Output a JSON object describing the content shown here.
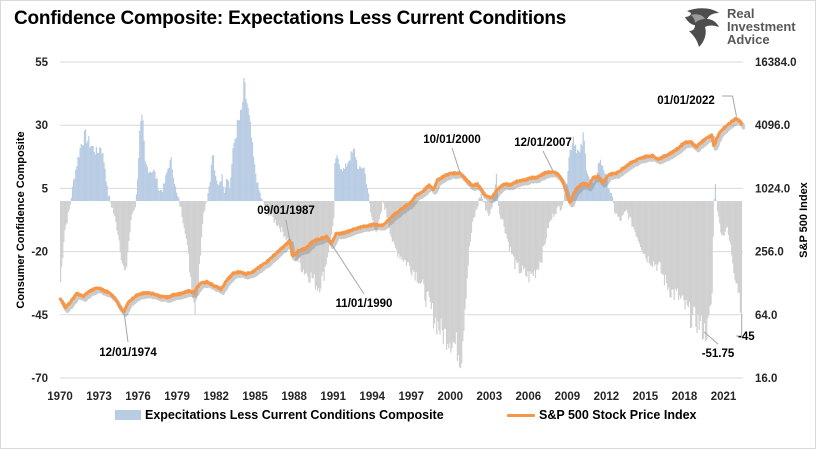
{
  "title": "Confidence Composite: Expectations Less Current Conditions",
  "logo": {
    "icon": "eagle-head-icon",
    "lines": [
      "Real",
      "Investment",
      "Advice"
    ]
  },
  "chart_data": {
    "type": "bar+line",
    "title": "Confidence Composite: Expectations Less Current Conditions",
    "xlabel": "",
    "ylabel": "Consumer Confidence Composite",
    "y2label": "S&P 500 Index",
    "x_range": [
      1970,
      2022.5
    ],
    "x_ticks": [
      "1970",
      "1973",
      "1976",
      "1979",
      "1982",
      "1985",
      "1988",
      "1991",
      "1994",
      "1997",
      "2000",
      "2003",
      "2006",
      "2009",
      "2012",
      "2015",
      "2018",
      "2021"
    ],
    "ylim": [
      -70,
      55
    ],
    "y_ticks": [
      "55",
      "30",
      "5",
      "-20",
      "-45",
      "-70"
    ],
    "y2_scale": "log2",
    "y2lim": [
      16,
      16384
    ],
    "y2_ticks": [
      "16384.0",
      "4096.0",
      "1024.0",
      "256.0",
      "64.0",
      "16.0"
    ],
    "grid": true,
    "legend_position": "bottom",
    "colors": {
      "positive_bar": "#b8cce4",
      "negative_bar": "#d0d0d0",
      "line": "#f79646",
      "highlight_label": "#ff0000"
    },
    "series": [
      {
        "name": "Expecitations Less Current Conditions Composite",
        "type": "bar",
        "note": "monthly values, anchor points [year, value]",
        "points": [
          [
            1970.0,
            -32
          ],
          [
            1970.3,
            -12
          ],
          [
            1970.7,
            -3
          ],
          [
            1971.0,
            8
          ],
          [
            1971.3,
            16
          ],
          [
            1971.6,
            23
          ],
          [
            1971.9,
            26
          ],
          [
            1972.2,
            23
          ],
          [
            1972.5,
            21
          ],
          [
            1972.8,
            19
          ],
          [
            1973.1,
            22
          ],
          [
            1973.4,
            14
          ],
          [
            1973.6,
            4
          ],
          [
            1973.8,
            0
          ],
          [
            1974.0,
            -3
          ],
          [
            1974.4,
            -12
          ],
          [
            1974.8,
            -26
          ],
          [
            1975.0,
            -30
          ],
          [
            1975.2,
            -18
          ],
          [
            1975.5,
            -5
          ],
          [
            1975.8,
            -1
          ],
          [
            1975.9,
            8
          ],
          [
            1976.1,
            28
          ],
          [
            1976.3,
            32
          ],
          [
            1976.5,
            15
          ],
          [
            1976.8,
            12
          ],
          [
            1977.2,
            12
          ],
          [
            1977.6,
            4
          ],
          [
            1977.9,
            5
          ],
          [
            1978.3,
            14
          ],
          [
            1978.5,
            16
          ],
          [
            1978.9,
            3
          ],
          [
            1979.1,
            0
          ],
          [
            1979.2,
            -2
          ],
          [
            1979.6,
            -12
          ],
          [
            1980.0,
            -30
          ],
          [
            1980.3,
            -42
          ],
          [
            1980.6,
            -32
          ],
          [
            1980.9,
            -8
          ],
          [
            1981.1,
            -2
          ],
          [
            1981.3,
            2
          ],
          [
            1981.5,
            9
          ],
          [
            1981.7,
            20
          ],
          [
            1981.9,
            9
          ],
          [
            1982.1,
            6
          ],
          [
            1982.4,
            10
          ],
          [
            1982.6,
            4
          ],
          [
            1982.8,
            11
          ],
          [
            1983.0,
            5
          ],
          [
            1983.3,
            22
          ],
          [
            1983.6,
            30
          ],
          [
            1983.9,
            34
          ],
          [
            1984.1,
            45
          ],
          [
            1984.3,
            40
          ],
          [
            1984.6,
            28
          ],
          [
            1984.9,
            14
          ],
          [
            1985.2,
            5
          ],
          [
            1985.5,
            0
          ],
          [
            1985.7,
            -2
          ],
          [
            1986.2,
            -6
          ],
          [
            1986.8,
            -10
          ],
          [
            1987.3,
            -14
          ],
          [
            1987.8,
            -20
          ],
          [
            1988.3,
            -24
          ],
          [
            1988.8,
            -28
          ],
          [
            1989.3,
            -30
          ],
          [
            1989.8,
            -34
          ],
          [
            1990.2,
            -30
          ],
          [
            1990.7,
            -16
          ],
          [
            1991.0,
            -8
          ],
          [
            1991.1,
            18
          ],
          [
            1991.5,
            14
          ],
          [
            1991.8,
            12
          ],
          [
            1992.2,
            17
          ],
          [
            1992.6,
            20
          ],
          [
            1992.9,
            12
          ],
          [
            1993.3,
            14
          ],
          [
            1993.6,
            5
          ],
          [
            1993.8,
            -4
          ],
          [
            1994.0,
            -8
          ],
          [
            1994.3,
            -12
          ],
          [
            1994.6,
            -6
          ],
          [
            1994.8,
            0
          ],
          [
            1995.0,
            -4
          ],
          [
            1995.6,
            -18
          ],
          [
            1996.2,
            -22
          ],
          [
            1996.9,
            -26
          ],
          [
            1997.5,
            -30
          ],
          [
            1998.1,
            -38
          ],
          [
            1998.7,
            -46
          ],
          [
            1999.3,
            -52
          ],
          [
            1999.9,
            -54
          ],
          [
            2000.5,
            -58
          ],
          [
            2000.8,
            -62
          ],
          [
            2001.1,
            -40
          ],
          [
            2001.4,
            -20
          ],
          [
            2001.7,
            -8
          ],
          [
            2002.0,
            -3
          ],
          [
            2002.3,
            3
          ],
          [
            2002.6,
            -2
          ],
          [
            2003.0,
            -6
          ],
          [
            2003.3,
            2
          ],
          [
            2003.5,
            10
          ],
          [
            2003.7,
            -4
          ],
          [
            2004.0,
            -8
          ],
          [
            2004.5,
            -18
          ],
          [
            2005.0,
            -26
          ],
          [
            2005.5,
            -28
          ],
          [
            2006.0,
            -30
          ],
          [
            2006.5,
            -28
          ],
          [
            2007.0,
            -22
          ],
          [
            2007.5,
            -10
          ],
          [
            2008.0,
            -4
          ],
          [
            2008.5,
            -2
          ],
          [
            2008.8,
            2
          ],
          [
            2009.1,
            18
          ],
          [
            2009.4,
            26
          ],
          [
            2009.6,
            22
          ],
          [
            2009.9,
            18
          ],
          [
            2010.2,
            26
          ],
          [
            2010.4,
            14
          ],
          [
            2010.7,
            8
          ],
          [
            2011.0,
            6
          ],
          [
            2011.4,
            16
          ],
          [
            2011.7,
            14
          ],
          [
            2012.0,
            8
          ],
          [
            2012.3,
            3
          ],
          [
            2012.6,
            -4
          ],
          [
            2013.0,
            -8
          ],
          [
            2013.5,
            -4
          ],
          [
            2014.0,
            -10
          ],
          [
            2014.5,
            -16
          ],
          [
            2015.0,
            -22
          ],
          [
            2015.5,
            -24
          ],
          [
            2016.0,
            -26
          ],
          [
            2016.5,
            -32
          ],
          [
            2017.0,
            -36
          ],
          [
            2017.5,
            -38
          ],
          [
            2018.0,
            -42
          ],
          [
            2018.5,
            -46
          ],
          [
            2019.0,
            -48
          ],
          [
            2019.5,
            -51.75
          ],
          [
            2019.8,
            -50
          ],
          [
            2020.1,
            -36
          ],
          [
            2020.2,
            -4
          ],
          [
            2020.3,
            8
          ],
          [
            2020.4,
            2
          ],
          [
            2020.6,
            -8
          ],
          [
            2020.9,
            -14
          ],
          [
            2021.2,
            -10
          ],
          [
            2021.5,
            -18
          ],
          [
            2021.8,
            -28
          ],
          [
            2022.0,
            -32
          ],
          [
            2022.2,
            -38
          ],
          [
            2022.4,
            -45
          ]
        ]
      },
      {
        "name": "S&P 500 Stock Price Index",
        "type": "line",
        "axis": "right",
        "note": "anchor points [year, index level]",
        "points": [
          [
            1970.0,
            92
          ],
          [
            1970.4,
            75
          ],
          [
            1970.8,
            84
          ],
          [
            1971.3,
            102
          ],
          [
            1971.8,
            96
          ],
          [
            1972.3,
            108
          ],
          [
            1972.9,
            116
          ],
          [
            1973.3,
            110
          ],
          [
            1973.8,
            104
          ],
          [
            1974.3,
            90
          ],
          [
            1974.6,
            76
          ],
          [
            1974.92,
            68
          ],
          [
            1975.2,
            82
          ],
          [
            1975.6,
            92
          ],
          [
            1976.0,
            100
          ],
          [
            1976.6,
            104
          ],
          [
            1977.2,
            101
          ],
          [
            1977.8,
            95
          ],
          [
            1978.3,
            94
          ],
          [
            1978.8,
            100
          ],
          [
            1979.4,
            102
          ],
          [
            1979.9,
            108
          ],
          [
            1980.3,
            104
          ],
          [
            1980.8,
            128
          ],
          [
            1981.3,
            132
          ],
          [
            1981.8,
            122
          ],
          [
            1982.4,
            112
          ],
          [
            1982.8,
            135
          ],
          [
            1983.3,
            158
          ],
          [
            1983.8,
            164
          ],
          [
            1984.3,
            157
          ],
          [
            1984.9,
            166
          ],
          [
            1985.5,
            188
          ],
          [
            1986.0,
            210
          ],
          [
            1986.6,
            245
          ],
          [
            1987.2,
            285
          ],
          [
            1987.67,
            325
          ],
          [
            1987.85,
            232
          ],
          [
            1988.3,
            258
          ],
          [
            1988.9,
            275
          ],
          [
            1989.5,
            325
          ],
          [
            1990.0,
            340
          ],
          [
            1990.5,
            358
          ],
          [
            1990.84,
            305
          ],
          [
            1991.2,
            375
          ],
          [
            1991.8,
            385
          ],
          [
            1992.4,
            410
          ],
          [
            1993.0,
            435
          ],
          [
            1993.6,
            450
          ],
          [
            1994.2,
            465
          ],
          [
            1994.8,
            455
          ],
          [
            1995.3,
            520
          ],
          [
            1995.8,
            590
          ],
          [
            1996.3,
            660
          ],
          [
            1996.9,
            740
          ],
          [
            1997.4,
            880
          ],
          [
            1997.9,
            960
          ],
          [
            1998.4,
            1100
          ],
          [
            1998.7,
            1000
          ],
          [
            1999.0,
            1220
          ],
          [
            1999.5,
            1340
          ],
          [
            2000.0,
            1420
          ],
          [
            2000.75,
            1440
          ],
          [
            2001.2,
            1250
          ],
          [
            2001.7,
            1080
          ],
          [
            2002.1,
            1120
          ],
          [
            2002.6,
            890
          ],
          [
            2002.9,
            850
          ],
          [
            2003.2,
            840
          ],
          [
            2003.6,
            990
          ],
          [
            2004.1,
            1120
          ],
          [
            2004.6,
            1110
          ],
          [
            2005.1,
            1190
          ],
          [
            2005.7,
            1230
          ],
          [
            2006.2,
            1290
          ],
          [
            2006.7,
            1300
          ],
          [
            2007.3,
            1440
          ],
          [
            2007.92,
            1480
          ],
          [
            2008.3,
            1380
          ],
          [
            2008.7,
            1150
          ],
          [
            2009.0,
            850
          ],
          [
            2009.2,
            740
          ],
          [
            2009.6,
            980
          ],
          [
            2010.0,
            1110
          ],
          [
            2010.4,
            1140
          ],
          [
            2010.6,
            1070
          ],
          [
            2011.0,
            1290
          ],
          [
            2011.4,
            1340
          ],
          [
            2011.7,
            1150
          ],
          [
            2012.2,
            1390
          ],
          [
            2012.8,
            1430
          ],
          [
            2013.3,
            1600
          ],
          [
            2013.9,
            1800
          ],
          [
            2014.5,
            1950
          ],
          [
            2015.0,
            2060
          ],
          [
            2015.6,
            2100
          ],
          [
            2015.9,
            1950
          ],
          [
            2016.2,
            2000
          ],
          [
            2016.9,
            2200
          ],
          [
            2017.5,
            2450
          ],
          [
            2018.0,
            2800
          ],
          [
            2018.5,
            2850
          ],
          [
            2018.9,
            2520
          ],
          [
            2019.4,
            2900
          ],
          [
            2019.9,
            3200
          ],
          [
            2020.1,
            3280
          ],
          [
            2020.25,
            2580
          ],
          [
            2020.6,
            3300
          ],
          [
            2021.0,
            3800
          ],
          [
            2021.5,
            4300
          ],
          [
            2021.9,
            4700
          ],
          [
            2022.0,
            4760
          ],
          [
            2022.3,
            4400
          ],
          [
            2022.45,
            4100
          ]
        ]
      }
    ],
    "annotations": [
      {
        "label": "12/01/1974",
        "x": 1974.92,
        "series": "S&P 500 Stock Price Index",
        "value": 68
      },
      {
        "label": "09/01/1987",
        "x": 1987.67,
        "series": "S&P 500 Stock Price Index",
        "value": 325
      },
      {
        "label": "11/01/1990",
        "x": 1990.84,
        "series": "S&P 500 Stock Price Index",
        "value": 305
      },
      {
        "label": "10/01/2000",
        "x": 2000.75,
        "series": "S&P 500 Stock Price Index",
        "value": 1440
      },
      {
        "label": "12/01/2007",
        "x": 2007.92,
        "series": "S&P 500 Stock Price Index",
        "value": 1480
      },
      {
        "label": "01/01/2022",
        "x": 2022.0,
        "series": "S&P 500 Stock Price Index",
        "value": 4760
      },
      {
        "label": "-51.75",
        "x": 2019.5,
        "series": "Expecitations Less Current Conditions Composite",
        "value": -51.75
      },
      {
        "label": "-45",
        "x": 2022.4,
        "series": "Expecitations Less Current Conditions Composite",
        "value": -45,
        "highlight": true
      }
    ]
  },
  "legend": {
    "items": [
      {
        "label": "Expecitations Less Current Conditions Composite",
        "kind": "bar"
      },
      {
        "label": "S&P 500 Stock Price Index",
        "kind": "line"
      }
    ]
  }
}
